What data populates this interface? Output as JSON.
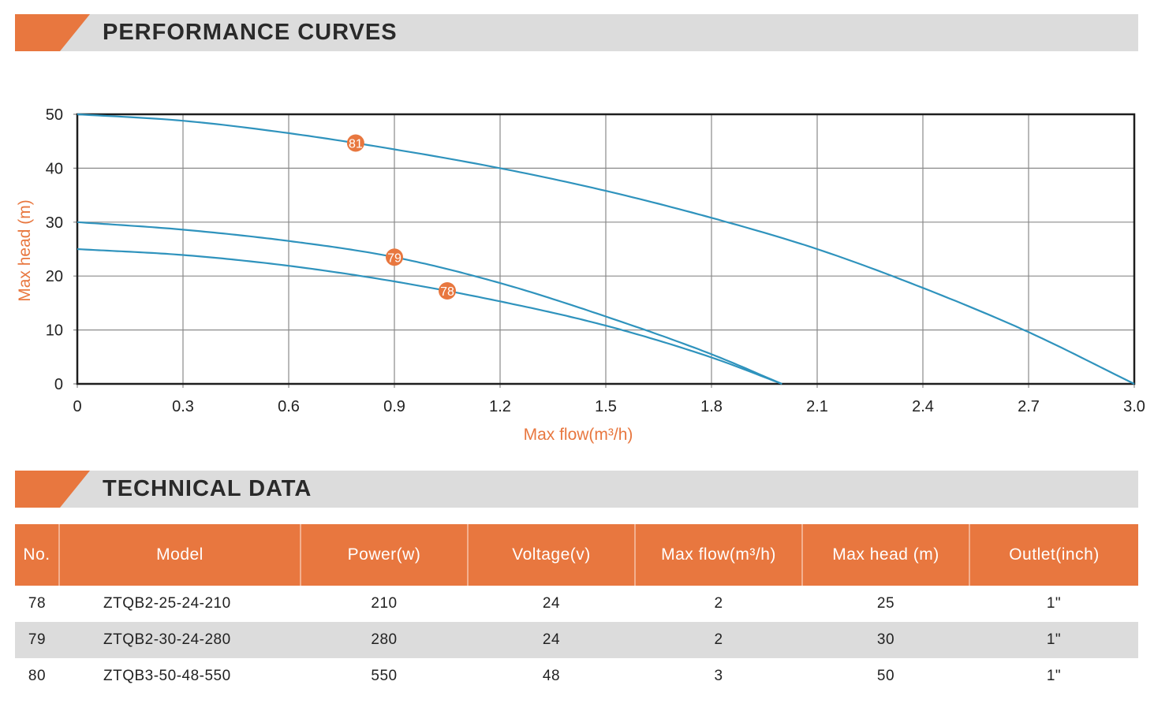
{
  "sections": {
    "performance_title": "PERFORMANCE CURVES",
    "technical_title": "TECHNICAL DATA"
  },
  "colors": {
    "accent": "#e8773f",
    "header_band": "#dcdcdc",
    "curve": "#2f93bd",
    "axis_label": "#e8773f"
  },
  "chart_data": {
    "type": "line",
    "title": "",
    "xlabel": "Max flow(m³/h)",
    "ylabel": "Max head (m)",
    "xlim": [
      0,
      3.0
    ],
    "ylim": [
      0,
      50
    ],
    "x_ticks": [
      "0",
      "0.3",
      "0.6",
      "0.9",
      "1.2",
      "1.5",
      "1.8",
      "2.1",
      "2.4",
      "2.7",
      "3.0"
    ],
    "y_ticks": [
      "0",
      "10",
      "20",
      "30",
      "40",
      "50"
    ],
    "grid": true,
    "series": [
      {
        "name": "81",
        "x": [
          0,
          0.3,
          0.6,
          0.9,
          1.2,
          1.5,
          1.8,
          2.1,
          2.4,
          2.7,
          3.0
        ],
        "y": [
          50,
          48.8,
          46.5,
          43.5,
          40,
          35.8,
          30.8,
          25,
          17.8,
          9.6,
          0
        ],
        "marker_x": 0.79
      },
      {
        "name": "79",
        "x": [
          0,
          0.3,
          0.6,
          0.9,
          1.2,
          1.5,
          1.8,
          2.0
        ],
        "y": [
          30,
          28.6,
          26.5,
          23.5,
          18.7,
          12.5,
          5.5,
          0
        ],
        "marker_x": 0.9
      },
      {
        "name": "78",
        "x": [
          0,
          0.3,
          0.6,
          0.9,
          1.2,
          1.5,
          1.8,
          2.0
        ],
        "y": [
          25,
          23.9,
          21.9,
          19,
          15.3,
          10.8,
          4.9,
          0
        ],
        "marker_x": 1.05
      }
    ]
  },
  "table": {
    "headers": [
      "No.",
      "Model",
      "Power(w)",
      "Voltage(v)",
      "Max flow(m³/h)",
      "Max head (m)",
      "Outlet(inch)"
    ],
    "rows": [
      [
        "78",
        "ZTQB2-25-24-210",
        "210",
        "24",
        "2",
        "25",
        "1\""
      ],
      [
        "79",
        "ZTQB2-30-24-280",
        "280",
        "24",
        "2",
        "30",
        "1\""
      ],
      [
        "80",
        "ZTQB3-50-48-550",
        "550",
        "48",
        "3",
        "50",
        "1\""
      ]
    ]
  }
}
